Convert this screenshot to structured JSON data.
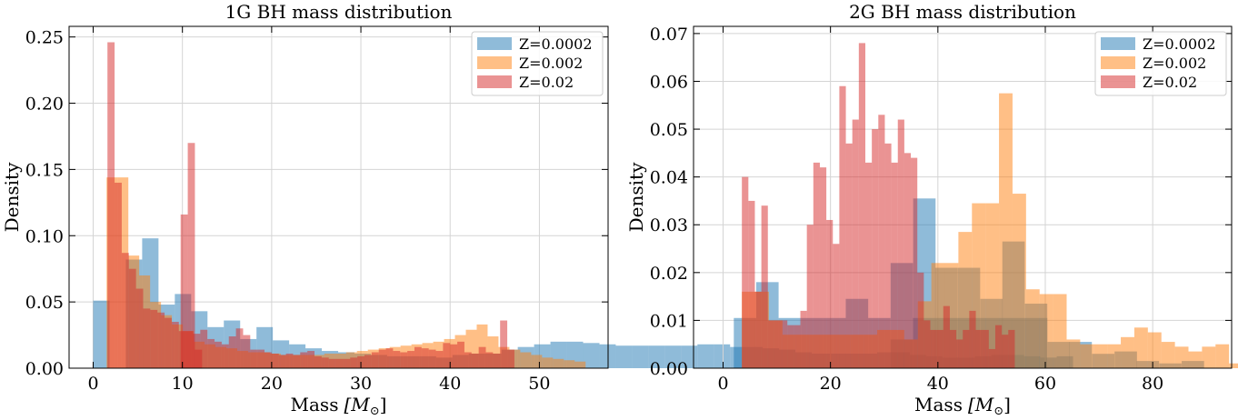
{
  "chart_data": [
    {
      "type": "histogram",
      "title": "1G BH mass distribution",
      "xlabel": "Mass",
      "xlabel_unit": "[M",
      "xlabel_unit_sub": "⊙",
      "xlabel_unit_close": "]",
      "ylabel": "Density",
      "xlim": [
        -2.7,
        57.7
      ],
      "ylim": [
        0,
        0.258
      ],
      "xticks": [
        0,
        10,
        20,
        30,
        40,
        50
      ],
      "yticks": [
        0.0,
        0.05,
        0.1,
        0.15,
        0.2,
        0.25
      ],
      "ytick_labels": [
        "0.00",
        "0.05",
        "0.10",
        "0.15",
        "0.20",
        "0.25"
      ],
      "grid": true,
      "legend_position": "top-right",
      "series": [
        {
          "name": "Z=0.0002",
          "color": "#1f77b4",
          "bin_start": 0.0,
          "bin_width": 1.83,
          "values": [
            0.051,
            0.0,
            0.082,
            0.098,
            0.048,
            0.056,
            0.043,
            0.031,
            0.036,
            0.022,
            0.031,
            0.021,
            0.018,
            0.015,
            0.013,
            0.012,
            0.011,
            0.01,
            0.009,
            0.009,
            0.009,
            0.008,
            0.01,
            0.011,
            0.011,
            0.014,
            0.016,
            0.018,
            0.02,
            0.02,
            0.019,
            0.018,
            0.017,
            0.017,
            0.017,
            0.017,
            0.017,
            0.018,
            0.018,
            0.016,
            0.016,
            0.015,
            0.014,
            0.012,
            0.011,
            0.011,
            0.011,
            0.011,
            0.012,
            0.012,
            0.01,
            0.009,
            0.008,
            0.008,
            0.009,
            0.01,
            0.01,
            0.009,
            0.008,
            0.009
          ]
        },
        {
          "name": "Z=0.002",
          "color": "#ff7f0e",
          "bin_start": 1.5,
          "bin_width": 1.22,
          "values": [
            0.144,
            0.144,
            0.085,
            0.07,
            0.05,
            0.04,
            0.033,
            0.028,
            0.02,
            0.018,
            0.016,
            0.015,
            0.013,
            0.012,
            0.012,
            0.011,
            0.01,
            0.01,
            0.01,
            0.01,
            0.011,
            0.011,
            0.012,
            0.013,
            0.014,
            0.015,
            0.016,
            0.017,
            0.018,
            0.019,
            0.02,
            0.022,
            0.025,
            0.029,
            0.033,
            0.024,
            0.016,
            0.014,
            0.012,
            0.01,
            0.008,
            0.007,
            0.006,
            0.005
          ]
        },
        {
          "name": "Z=0.02",
          "color": "#d62728",
          "bin_start": 1.6,
          "bin_width": 0.8,
          "values": [
            0.246,
            0.14,
            0.087,
            0.075,
            0.06,
            0.045,
            0.044,
            0.042,
            0.038,
            0.035,
            0.028,
            0.028,
            0.026,
            0.029,
            0.022,
            0.02,
            0.018,
            0.024,
            0.03,
            0.025,
            0.014,
            0.014,
            0.012,
            0.011,
            0.01,
            0.011,
            0.01,
            0.012,
            0.013,
            0.009,
            0.008,
            0.007,
            0.007,
            0.007,
            0.008,
            0.009,
            0.01,
            0.012,
            0.014,
            0.015,
            0.013,
            0.012,
            0.013,
            0.016,
            0.015,
            0.014,
            0.013,
            0.019,
            0.018,
            0.02,
            0.012,
            0.011,
            0.016,
            0.012,
            0.011,
            0.036,
            0.014
          ],
          "spikes": [
            {
              "x": 9.8,
              "w": 0.8,
              "v": 0.116
            },
            {
              "x": 10.6,
              "w": 0.8,
              "v": 0.17
            },
            {
              "x": 11.4,
              "w": 0.8,
              "v": 0.014
            }
          ]
        }
      ]
    },
    {
      "type": "histogram",
      "title": "2G BH mass distribution",
      "xlabel": "Mass",
      "xlabel_unit": "[M",
      "xlabel_unit_sub": "⊙",
      "xlabel_unit_close": "]",
      "ylabel": "Density",
      "xlim": [
        -5.5,
        94.7
      ],
      "ylim": [
        0,
        0.0715
      ],
      "xticks": [
        0,
        20,
        40,
        60,
        80
      ],
      "yticks": [
        0.0,
        0.01,
        0.02,
        0.03,
        0.04,
        0.05,
        0.06,
        0.07
      ],
      "ytick_labels": [
        "0.00",
        "0.01",
        "0.02",
        "0.03",
        "0.04",
        "0.05",
        "0.06",
        "0.07"
      ],
      "grid": true,
      "legend_position": "top-right",
      "series": [
        {
          "name": "Z=0.0002",
          "color": "#1f77b4",
          "bin_start": 2.0,
          "bin_width": 4.17,
          "values": [
            0.0105,
            0.018,
            0.0105,
            0.0105,
            0.0105,
            0.0145,
            0.0105,
            0.006,
            0.0105,
            0.0105,
            0.0105,
            0.0105,
            0.0105,
            0.0105
          ],
          "extra": [
            {
              "x": 31.2,
              "w": 4.17,
              "v": 0.022
            },
            {
              "x": 35.4,
              "w": 4.17,
              "v": 0.0355
            },
            {
              "x": 39.5,
              "w": 4.17,
              "v": 0.021
            },
            {
              "x": 43.7,
              "w": 4.17,
              "v": 0.021
            },
            {
              "x": 47.9,
              "w": 4.17,
              "v": 0.0145
            },
            {
              "x": 52.0,
              "w": 4.17,
              "v": 0.0265
            },
            {
              "x": 56.2,
              "w": 4.17,
              "v": 0.0135
            },
            {
              "x": 60.4,
              "w": 4.17,
              "v": 0.0055
            },
            {
              "x": 64.5,
              "w": 4.17,
              "v": 0.0055
            },
            {
              "x": 68.7,
              "w": 4.17,
              "v": 0.003
            },
            {
              "x": 72.9,
              "w": 4.17,
              "v": 0.0035
            },
            {
              "x": 77.0,
              "w": 4.17,
              "v": 0.0015
            },
            {
              "x": 81.2,
              "w": 4.17,
              "v": 0.001
            },
            {
              "x": 85.4,
              "w": 4.17,
              "v": 0.0015
            }
          ]
        },
        {
          "name": "Z=0.002",
          "color": "#ff7f0e",
          "bin_start": 3.5,
          "bin_width": 2.52,
          "values": [
            0.016,
            0.016,
            0.01,
            0.007,
            0.007,
            0.007,
            0.007,
            0.007,
            0.007,
            0.007,
            0.008,
            0.008,
            0.006,
            0.014,
            0.022,
            0.022,
            0.0285,
            0.0345,
            0.0345,
            0.0575,
            0.0365,
            0.0165,
            0.0155,
            0.0155,
            0.006,
            0.005,
            0.005,
            0.005,
            0.0065,
            0.0085,
            0.0075,
            0.0055,
            0.0045,
            0.0035,
            0.0045,
            0.005,
            0.001,
            0.0005
          ]
        },
        {
          "name": "Z=0.02",
          "color": "#d62728",
          "bin_start": 3.5,
          "bin_width": 1.21,
          "values": [
            0.04,
            0.035,
            0.016,
            0.034,
            0.01,
            0.01,
            0.01,
            0.009,
            0.009,
            0.012,
            0.03,
            0.043,
            0.042,
            0.031,
            0.026,
            0.059,
            0.047,
            0.052,
            0.068,
            0.043,
            0.05,
            0.053,
            0.047,
            0.043,
            0.052,
            0.045,
            0.044,
            0.02,
            0.01,
            0.008,
            0.008,
            0.013,
            0.008,
            0.006,
            0.008,
            0.012,
            0.008,
            0.008,
            0.004,
            0.009,
            0.007,
            0.008
          ]
        }
      ]
    }
  ]
}
